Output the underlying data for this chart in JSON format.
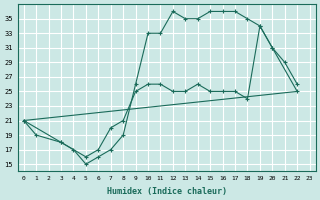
{
  "xlabel": "Humidex (Indice chaleur)",
  "bg_color": "#cce8e5",
  "grid_color": "#b8d8d5",
  "line_color": "#1a6b5a",
  "xlim": [
    -0.5,
    23.5
  ],
  "ylim": [
    14.0,
    37.0
  ],
  "xtick_vals": [
    0,
    1,
    2,
    3,
    4,
    5,
    6,
    7,
    8,
    9,
    10,
    11,
    12,
    13,
    14,
    15,
    16,
    17,
    18,
    19,
    20,
    21,
    22,
    23
  ],
  "ytick_vals": [
    15,
    17,
    19,
    21,
    23,
    25,
    27,
    29,
    31,
    33,
    35
  ],
  "curve1_x": [
    0,
    1,
    3,
    4,
    5,
    6,
    7,
    8,
    9,
    10,
    11,
    12,
    13,
    14,
    15,
    16,
    17,
    18,
    19,
    20,
    21,
    22
  ],
  "curve1_y": [
    21,
    19,
    18,
    17,
    15,
    16,
    17,
    19,
    26,
    33,
    33,
    36,
    35,
    35,
    36,
    36,
    36,
    35,
    34,
    31,
    29,
    26
  ],
  "curve2_x": [
    0,
    3,
    5,
    6,
    7,
    8,
    9,
    10,
    11,
    12,
    13,
    14,
    15,
    16,
    17,
    18,
    19,
    20,
    22
  ],
  "curve2_y": [
    21,
    18,
    16,
    17,
    20,
    21,
    25,
    26,
    26,
    25,
    25,
    26,
    25,
    25,
    25,
    24,
    34,
    31,
    25
  ],
  "curve3_x": [
    0,
    22
  ],
  "curve3_y": [
    21,
    25
  ]
}
